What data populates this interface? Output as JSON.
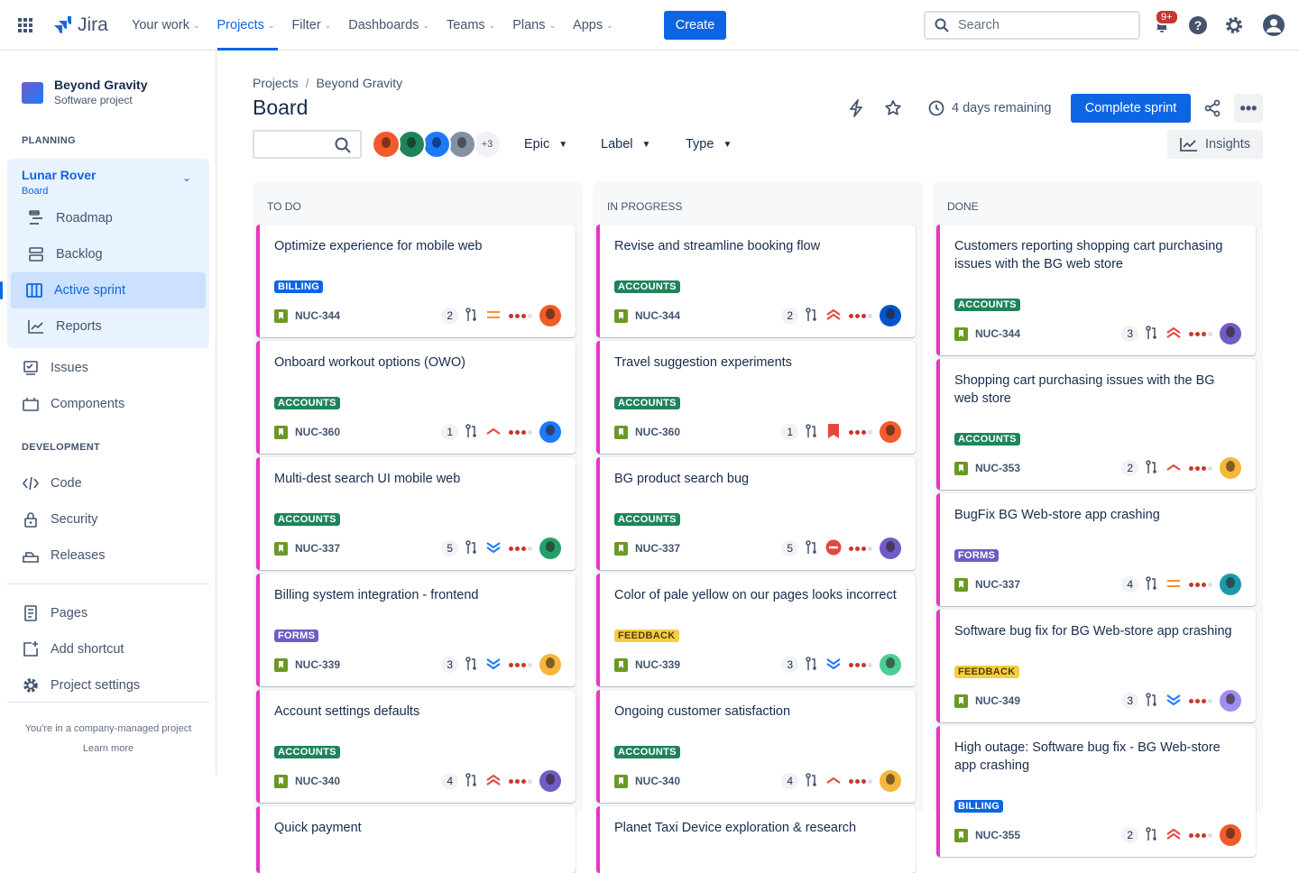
{
  "topnav": {
    "logo": "Jira",
    "items": [
      {
        "label": "Your work"
      },
      {
        "label": "Projects",
        "active": true
      },
      {
        "label": "Filter"
      },
      {
        "label": "Dashboards"
      },
      {
        "label": "Teams"
      },
      {
        "label": "Plans"
      },
      {
        "label": "Apps"
      }
    ],
    "create": "Create",
    "search_placeholder": "Search",
    "notifications_badge": "9+"
  },
  "sidebar": {
    "project_name": "Beyond Gravity",
    "project_type": "Software project",
    "planning": "PLANNING",
    "board_name": "Lunar Rover",
    "board_sub": "Board",
    "planning_items": [
      {
        "label": "Roadmap",
        "icon": "roadmap-icon"
      },
      {
        "label": "Backlog",
        "icon": "backlog-icon"
      },
      {
        "label": "Active sprint",
        "icon": "board-icon",
        "selected": true
      },
      {
        "label": "Reports",
        "icon": "reports-icon"
      }
    ],
    "items": [
      {
        "label": "Issues",
        "icon": "issues-icon"
      },
      {
        "label": "Components",
        "icon": "components-icon"
      }
    ],
    "development": "DEVELOPMENT",
    "dev_items": [
      {
        "label": "Code",
        "icon": "code-icon"
      },
      {
        "label": "Security",
        "icon": "lock-icon"
      },
      {
        "label": "Releases",
        "icon": "releases-icon"
      }
    ],
    "bottom_items": [
      {
        "label": "Pages",
        "icon": "pages-icon"
      },
      {
        "label": "Add shortcut",
        "icon": "add-shortcut-icon"
      },
      {
        "label": "Project settings",
        "icon": "gear-icon"
      }
    ],
    "footer_text": "You're in a company-managed project",
    "learn_more": "Learn more"
  },
  "header": {
    "breadcrumb": [
      "Projects",
      "Beyond Gravity"
    ],
    "title": "Board",
    "days_remaining": "4 days remaining",
    "complete_sprint": "Complete sprint",
    "insights": "Insights"
  },
  "filters": {
    "avatar_more": "+3",
    "epic": "Epic",
    "label": "Label",
    "type": "Type",
    "avatars": [
      "#f15b2a",
      "#1f845a",
      "#1d7afc",
      "#8590a2"
    ]
  },
  "colors": {
    "accent": "#0c66e4",
    "card_border": "#e935c6",
    "labels": {
      "BILLING": "#0c66e4",
      "ACCOUNTS": "#1f845a",
      "FORMS": "#6e5dc6",
      "FEEDBACK": "#f5cd47"
    }
  },
  "columns": [
    {
      "title": "TO DO",
      "cards": [
        {
          "title": "Optimize experience for mobile web",
          "label": "BILLING",
          "key": "NUC-344",
          "points": "2",
          "priority": "medium",
          "avatar": "#f15b2a"
        },
        {
          "title": "Onboard workout options (OWO)",
          "label": "ACCOUNTS",
          "key": "NUC-360",
          "points": "1",
          "priority": "high",
          "avatar": "#1d7afc"
        },
        {
          "title": "Multi-dest search UI mobile web",
          "label": "ACCOUNTS",
          "key": "NUC-337",
          "points": "5",
          "priority": "lowest",
          "avatar": "#22a06b"
        },
        {
          "title": "Billing system integration - frontend",
          "label": "FORMS",
          "key": "NUC-339",
          "points": "3",
          "priority": "lowest",
          "avatar": "#f5b73b"
        },
        {
          "title": "Account settings defaults",
          "label": "ACCOUNTS",
          "key": "NUC-340",
          "points": "4",
          "priority": "highest",
          "avatar": "#6e5dc6"
        },
        {
          "title": "Quick payment",
          "label": "",
          "key": "",
          "points": "",
          "priority": "",
          "avatar": ""
        }
      ]
    },
    {
      "title": "IN PROGRESS",
      "cards": [
        {
          "title": "Revise and streamline booking flow",
          "label": "ACCOUNTS",
          "key": "NUC-344",
          "points": "2",
          "priority": "highest",
          "avatar": "#0055cc"
        },
        {
          "title": "Travel suggestion experiments",
          "label": "ACCOUNTS",
          "key": "NUC-360",
          "points": "1",
          "priority": "critical",
          "avatar": "#f15b2a"
        },
        {
          "title": "BG product search bug",
          "label": "ACCOUNTS",
          "key": "NUC-337",
          "points": "5",
          "priority": "blocker",
          "avatar": "#6e5dc6"
        },
        {
          "title": "Color of pale yellow on our pages looks incorrect",
          "label": "FEEDBACK",
          "key": "NUC-339",
          "points": "3",
          "priority": "lowest",
          "avatar": "#4bce97"
        },
        {
          "title": "Ongoing customer satisfaction",
          "label": "ACCOUNTS",
          "key": "NUC-340",
          "points": "4",
          "priority": "high",
          "avatar": "#f5b73b"
        },
        {
          "title": "Planet Taxi Device exploration & research",
          "label": "",
          "key": "",
          "points": "",
          "priority": "",
          "avatar": ""
        }
      ]
    },
    {
      "title": "DONE",
      "cards": [
        {
          "title": "Customers reporting shopping cart purchasing issues with the BG web store",
          "label": "ACCOUNTS",
          "key": "NUC-344",
          "points": "3",
          "priority": "highest",
          "avatar": "#6e5dc6"
        },
        {
          "title": "Shopping cart purchasing issues with the BG web store",
          "label": "ACCOUNTS",
          "key": "NUC-353",
          "points": "2",
          "priority": "high",
          "avatar": "#f5b73b"
        },
        {
          "title": "BugFix BG Web-store app crashing",
          "label": "FORMS",
          "key": "NUC-337",
          "points": "4",
          "priority": "medium",
          "avatar": "#1d9aaa"
        },
        {
          "title": "Software bug fix for BG Web-store app crashing",
          "label": "FEEDBACK",
          "key": "NUC-349",
          "points": "3",
          "priority": "lowest",
          "avatar": "#9f8fef"
        },
        {
          "title": "High outage: Software bug fix - BG Web-store app crashing",
          "label": "BILLING",
          "key": "NUC-355",
          "points": "2",
          "priority": "highest",
          "avatar": "#f15b2a"
        }
      ]
    }
  ]
}
